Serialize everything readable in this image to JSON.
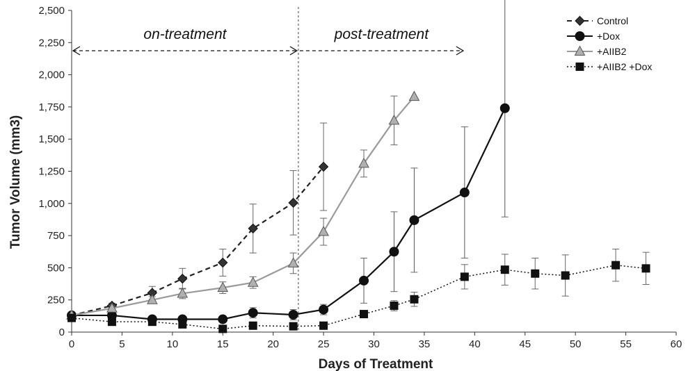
{
  "chart_data": {
    "type": "line",
    "title": "",
    "xlabel": "Days of Treatment",
    "ylabel": "Tumor Volume (mm3)",
    "xlim": [
      0,
      60
    ],
    "ylim": [
      0,
      2500
    ],
    "x_ticks": [
      0,
      5,
      10,
      15,
      20,
      25,
      30,
      35,
      40,
      45,
      50,
      55,
      60
    ],
    "y_ticks": [
      0,
      250,
      500,
      750,
      1000,
      1250,
      1500,
      1750,
      2000,
      2250,
      2500
    ],
    "y_tick_labels": [
      "0",
      "250",
      "500",
      "750",
      "1,000",
      "1,250",
      "1,500",
      "1,750",
      "2,000",
      "2,250",
      "2,500"
    ],
    "grid": false,
    "legend_position": "top-right",
    "annotations": [
      {
        "text": "on-treatment",
        "x_range": [
          0,
          22.5
        ]
      },
      {
        "text": "post-treatment",
        "x_range": [
          22.5,
          39
        ]
      }
    ],
    "treatment_end_day": 22.5,
    "series": [
      {
        "name": "Control",
        "color": "#222222",
        "line_style": "dashed",
        "marker": "diamond",
        "x": [
          0,
          4,
          8,
          11,
          15,
          18,
          22,
          25
        ],
        "y": [
          130,
          205,
          305,
          415,
          540,
          805,
          1005,
          1285
        ],
        "err": [
          15,
          20,
          50,
          80,
          105,
          190,
          250,
          340
        ]
      },
      {
        "name": "+Dox",
        "color": "#111111",
        "line_style": "solid",
        "marker": "circle",
        "x": [
          0,
          4,
          8,
          11,
          15,
          18,
          22,
          25,
          29,
          32,
          34,
          39,
          43
        ],
        "y": [
          130,
          130,
          100,
          100,
          100,
          150,
          135,
          175,
          400,
          625,
          870,
          1085,
          1740
        ],
        "err": [
          15,
          15,
          15,
          15,
          15,
          40,
          40,
          40,
          175,
          310,
          405,
          510,
          845
        ]
      },
      {
        "name": "+AIIB2",
        "color": "#9a9a9a",
        "line_style": "solid",
        "marker": "triangle",
        "x": [
          0,
          4,
          8,
          11,
          15,
          18,
          22,
          25,
          29,
          32,
          34
        ],
        "y": [
          130,
          185,
          250,
          300,
          345,
          385,
          535,
          780,
          1310,
          1645,
          1830
        ],
        "err": [
          10,
          20,
          25,
          40,
          45,
          45,
          80,
          105,
          105,
          190,
          0
        ]
      },
      {
        "name": "+AIIB2 +Dox",
        "color": "#111111",
        "line_style": "dotted",
        "marker": "square",
        "x": [
          0,
          4,
          8,
          11,
          15,
          18,
          22,
          25,
          29,
          32,
          34,
          39,
          43,
          46,
          49,
          54,
          57
        ],
        "y": [
          110,
          80,
          80,
          60,
          25,
          50,
          45,
          50,
          140,
          205,
          255,
          430,
          485,
          455,
          440,
          520,
          495
        ],
        "err": [
          10,
          10,
          10,
          10,
          10,
          10,
          10,
          10,
          20,
          40,
          55,
          95,
          120,
          120,
          160,
          125,
          125
        ]
      }
    ]
  }
}
